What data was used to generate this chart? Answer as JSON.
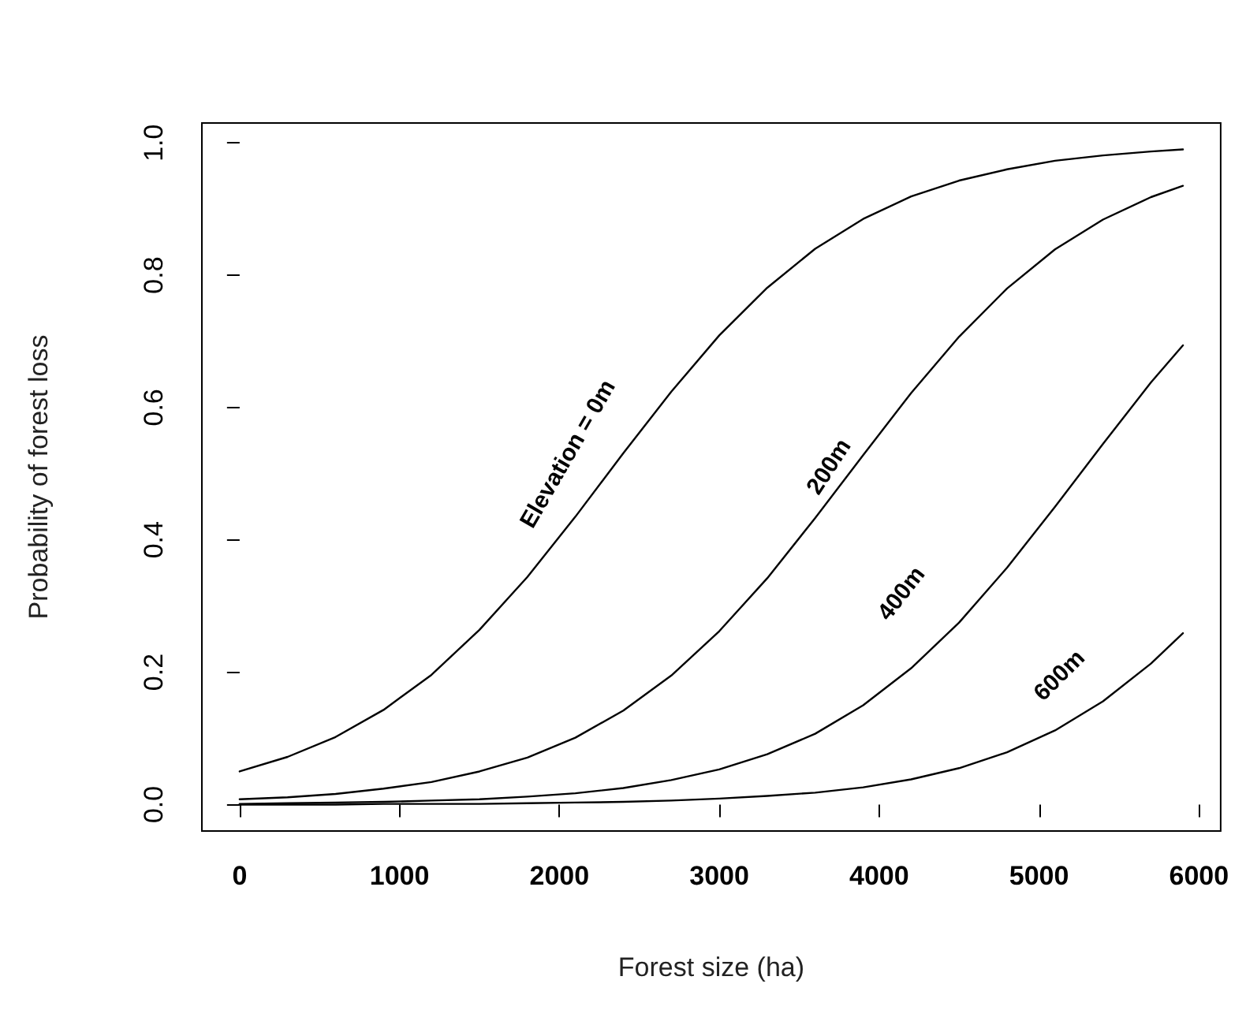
{
  "chart_data": {
    "type": "line",
    "xlabel": "Forest size (ha)",
    "ylabel": "Probability of forest loss",
    "x": [
      0,
      300,
      600,
      900,
      1200,
      1500,
      1800,
      2100,
      2400,
      2700,
      3000,
      3300,
      3600,
      3900,
      4200,
      4500,
      4800,
      5100,
      5400,
      5700,
      5900
    ],
    "series": [
      {
        "name": "Elevation = 0m",
        "color": "#000000",
        "values": [
          0.05,
          0.072,
          0.102,
          0.143,
          0.196,
          0.264,
          0.344,
          0.435,
          0.531,
          0.624,
          0.709,
          0.781,
          0.84,
          0.885,
          0.919,
          0.943,
          0.96,
          0.973,
          0.981,
          0.987,
          0.99
        ]
      },
      {
        "name": "200m",
        "color": "#000000",
        "values": [
          0.008,
          0.011,
          0.016,
          0.024,
          0.034,
          0.05,
          0.071,
          0.101,
          0.142,
          0.195,
          0.262,
          0.342,
          0.433,
          0.528,
          0.622,
          0.707,
          0.78,
          0.839,
          0.884,
          0.918,
          0.935
        ]
      },
      {
        "name": "400m",
        "color": "#000000",
        "values": [
          0.001,
          0.002,
          0.003,
          0.004,
          0.006,
          0.008,
          0.012,
          0.017,
          0.025,
          0.037,
          0.053,
          0.076,
          0.107,
          0.15,
          0.206,
          0.275,
          0.358,
          0.45,
          0.545,
          0.638,
          0.694
        ]
      },
      {
        "name": "600m",
        "color": "#000000",
        "values": [
          0.0,
          0.0,
          0.0,
          0.001,
          0.001,
          0.001,
          0.002,
          0.003,
          0.004,
          0.006,
          0.009,
          0.013,
          0.018,
          0.026,
          0.038,
          0.055,
          0.079,
          0.112,
          0.156,
          0.213,
          0.259
        ]
      }
    ],
    "xlim": [
      -236,
      6136
    ],
    "ylim": [
      -0.04,
      1.03
    ],
    "xticks": [
      0,
      1000,
      2000,
      3000,
      4000,
      5000,
      6000
    ],
    "yticks": [
      {
        "value": 0,
        "label": "0.0"
      },
      {
        "value": 0.2,
        "label": "0.2"
      },
      {
        "value": 0.4,
        "label": "0.4"
      },
      {
        "value": 0.6,
        "label": "0.6"
      },
      {
        "value": 0.8,
        "label": "0.8"
      },
      {
        "value": 1,
        "label": "1.0"
      }
    ],
    "grid": false,
    "marker": "none",
    "line_style": "solid"
  }
}
